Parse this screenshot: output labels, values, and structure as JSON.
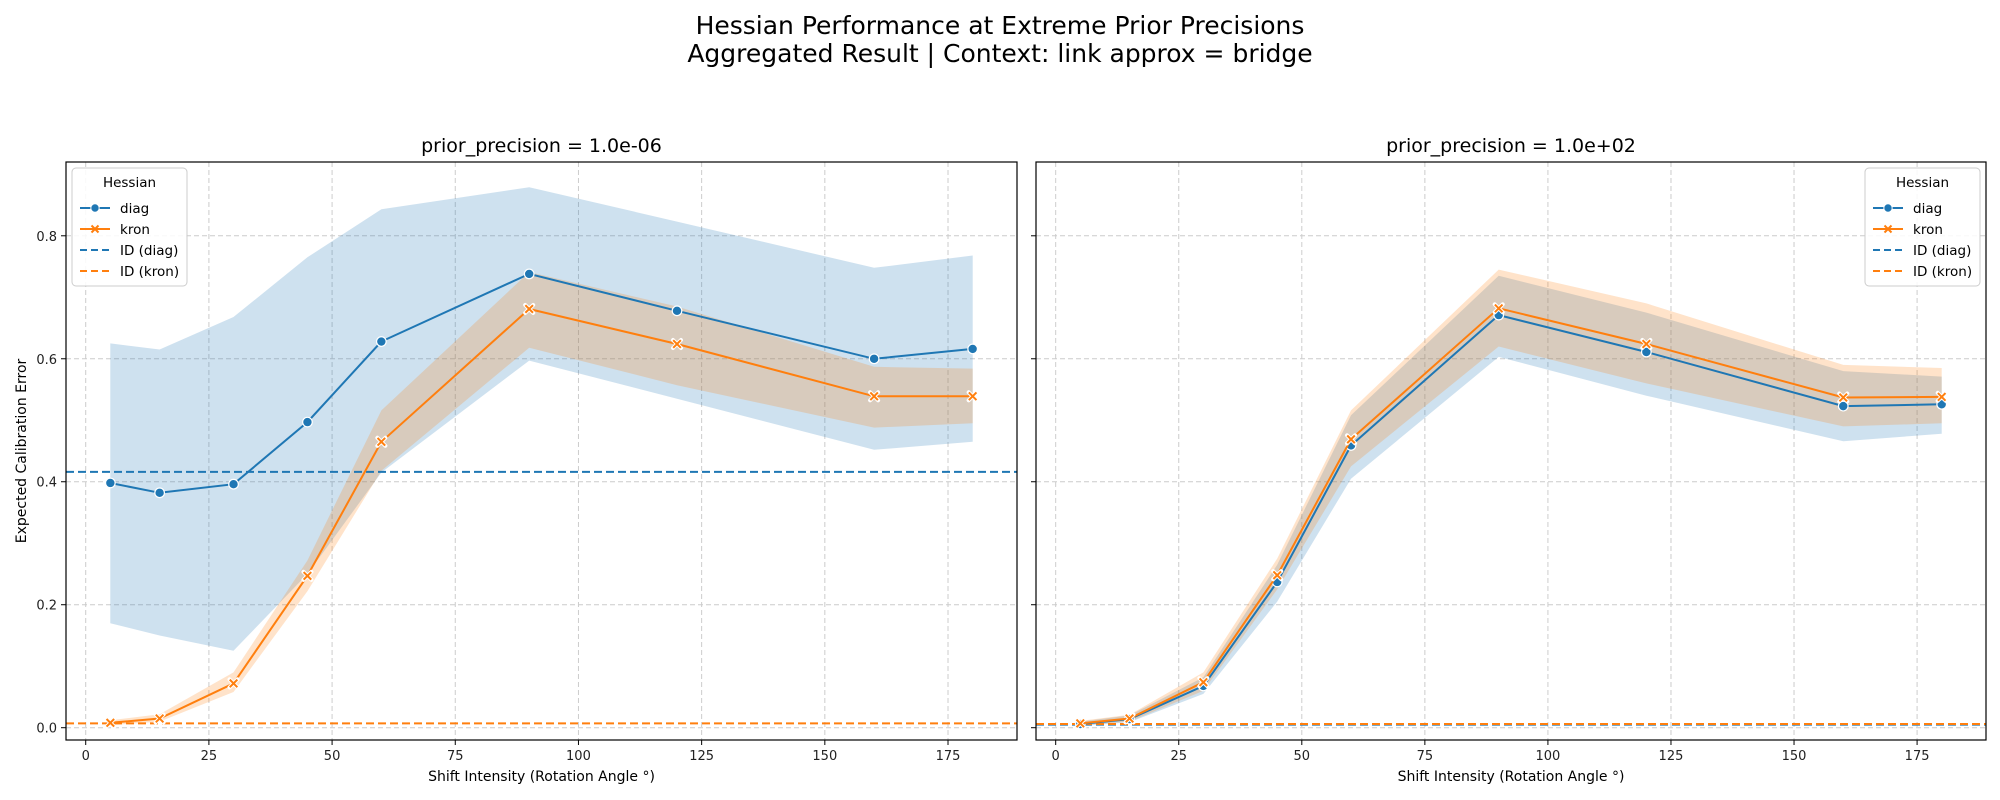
{
  "figure": {
    "title_line1": "Hessian Performance at Extreme Prior Precisions",
    "title_line2": "Aggregated Result | Context: link approx = bridge",
    "xlabel": "Shift Intensity (Rotation Angle °)",
    "ylabel": "Expected Calibration Error"
  },
  "legend": {
    "title": "Hessian",
    "entries": [
      "diag",
      "kron",
      "ID (diag)",
      "ID (kron)"
    ]
  },
  "colors": {
    "diag": "#1f77b4",
    "kron": "#ff7f0e",
    "grid": "#cccccc"
  },
  "chart_data": [
    {
      "type": "line",
      "title": "prior_precision = 1.0e-06",
      "xlabel": "Shift Intensity (Rotation Angle °)",
      "ylabel": "Expected Calibration Error",
      "xlim": [
        -4,
        189
      ],
      "ylim": [
        -0.02,
        0.92
      ],
      "xticks": [
        "0",
        "25",
        "50",
        "75",
        "100",
        "125",
        "150",
        "175"
      ],
      "yticks": [
        "0.0",
        "0.2",
        "0.4",
        "0.6",
        "0.8"
      ],
      "grid": true,
      "legend_position": "upper-left",
      "x": [
        5,
        15,
        30,
        45,
        60,
        90,
        120,
        160,
        180
      ],
      "series": [
        {
          "name": "diag",
          "marker": "circle",
          "values": [
            0.398,
            0.382,
            0.396,
            0.497,
            0.628,
            0.738,
            0.678,
            0.6,
            0.616
          ],
          "ci_low": [
            0.17,
            0.15,
            0.125,
            0.25,
            0.415,
            0.597,
            0.535,
            0.452,
            0.465
          ],
          "ci_high": [
            0.625,
            0.615,
            0.668,
            0.765,
            0.843,
            0.879,
            0.823,
            0.748,
            0.768
          ]
        },
        {
          "name": "kron",
          "marker": "x",
          "values": [
            0.008,
            0.015,
            0.072,
            0.247,
            0.465,
            0.681,
            0.624,
            0.539,
            0.539
          ],
          "ci_low": [
            0.004,
            0.01,
            0.058,
            0.222,
            0.418,
            0.618,
            0.557,
            0.488,
            0.495
          ],
          "ci_high": [
            0.012,
            0.022,
            0.09,
            0.272,
            0.516,
            0.741,
            0.685,
            0.587,
            0.584
          ]
        }
      ],
      "reference_lines": [
        {
          "name": "ID (diag)",
          "y": 0.416,
          "style": "dashed"
        },
        {
          "name": "ID (kron)",
          "y": 0.007,
          "style": "dashed"
        }
      ]
    },
    {
      "type": "line",
      "title": "prior_precision = 1.0e+02",
      "xlabel": "Shift Intensity (Rotation Angle °)",
      "ylabel": "",
      "xlim": [
        -4,
        189
      ],
      "ylim": [
        -0.02,
        0.92
      ],
      "xticks": [
        "0",
        "25",
        "50",
        "75",
        "100",
        "125",
        "150",
        "175"
      ],
      "yticks": [
        "0.0",
        "0.2",
        "0.4",
        "0.6",
        "0.8"
      ],
      "grid": true,
      "legend_position": "upper-right",
      "x": [
        5,
        15,
        30,
        45,
        60,
        90,
        120,
        160,
        180
      ],
      "series": [
        {
          "name": "diag",
          "marker": "circle",
          "values": [
            0.006,
            0.014,
            0.068,
            0.237,
            0.459,
            0.671,
            0.611,
            0.523,
            0.526
          ],
          "ci_low": [
            0.003,
            0.009,
            0.055,
            0.205,
            0.405,
            0.603,
            0.54,
            0.466,
            0.478
          ],
          "ci_high": [
            0.01,
            0.02,
            0.082,
            0.265,
            0.508,
            0.735,
            0.675,
            0.58,
            0.571
          ]
        },
        {
          "name": "kron",
          "marker": "x",
          "values": [
            0.007,
            0.015,
            0.074,
            0.248,
            0.469,
            0.682,
            0.624,
            0.537,
            0.538
          ],
          "ci_low": [
            0.004,
            0.01,
            0.06,
            0.225,
            0.425,
            0.62,
            0.56,
            0.49,
            0.495
          ],
          "ci_high": [
            0.011,
            0.021,
            0.09,
            0.275,
            0.516,
            0.745,
            0.69,
            0.59,
            0.585
          ]
        }
      ],
      "reference_lines": [
        {
          "name": "ID (diag)",
          "y": 0.005,
          "style": "dashed"
        },
        {
          "name": "ID (kron)",
          "y": 0.006,
          "style": "dashed"
        }
      ]
    }
  ]
}
